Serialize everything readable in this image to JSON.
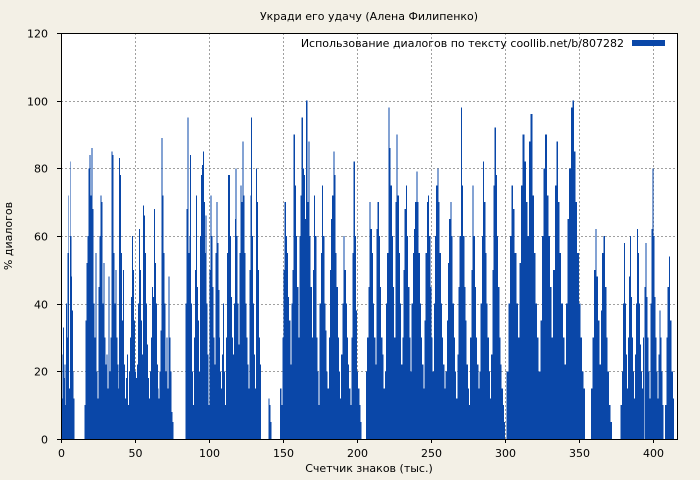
{
  "chart_data": {
    "type": "bar",
    "title": "Укради его удачу (Алена Филипенко)",
    "xlabel": "Счетчик знаков (тыс.)",
    "ylabel": "% диалогов",
    "xlim": [
      0,
      416
    ],
    "ylim": [
      0,
      120
    ],
    "xticks": [
      0,
      50,
      100,
      150,
      200,
      250,
      300,
      350,
      400
    ],
    "yticks": [
      0,
      20,
      40,
      60,
      80,
      100,
      120
    ],
    "grid": true,
    "legend_position": "top-right",
    "bar_color": "#0a47a8",
    "series": [
      {
        "name": "Использование диалогов по тексту coollib.net/b/807282",
        "segments": [
          {
            "x0": 0,
            "x1": 9,
            "values": [
              8,
              25,
              12,
              33,
              18,
              22,
              10,
              40,
              30,
              55,
              72,
              15,
              82,
              60,
              48,
              38,
              20,
              12
            ]
          },
          {
            "x0": 16,
            "x1": 76,
            "values": [
              10,
              35,
              52,
              60,
              80,
              84,
              72,
              86,
              68,
              40,
              30,
              55,
              20,
              12,
              45,
              60,
              72,
              70,
              40,
              52,
              30,
              22,
              25,
              15,
              48,
              20,
              30,
              85,
              84,
              55,
              40,
              50,
              30,
              22,
              15,
              83,
              78,
              55,
              35,
              50,
              22,
              12,
              18,
              25,
              10,
              20,
              30,
              42,
              60,
              50,
              35,
              20,
              18,
              22,
              40,
              62,
              50,
              35,
              25,
              69,
              66,
              55,
              40,
              28,
              18,
              12,
              20,
              30,
              45,
              42,
              68,
              52,
              40,
              22,
              15,
              12,
              20,
              32,
              89,
              72,
              55,
              40,
              20,
              30,
              15,
              48,
              30,
              20,
              8,
              5
            ]
          },
          {
            "x0": 84,
            "x1": 135,
            "values": [
              40,
              68,
              95,
              55,
              60,
              84,
              40,
              20,
              10,
              30,
              50,
              72,
              45,
              35,
              20,
              60,
              78,
              81,
              85,
              70,
              55,
              66,
              40,
              25,
              10,
              50,
              72,
              60,
              45,
              30,
              22,
              55,
              70,
              58,
              44,
              30,
              20,
              15,
              25,
              40,
              20,
              10,
              30,
              55,
              78,
              78,
              60,
              42,
              30,
              25,
              40,
              65,
              80,
              60,
              40,
              28,
              55,
              75,
              70,
              88,
              72,
              55,
              40,
              30,
              22,
              15,
              50,
              72,
              95,
              60,
              40,
              25,
              15,
              80,
              70,
              50,
              30,
              22
            ]
          },
          {
            "x0": 140,
            "x1": 142,
            "values": [
              12,
              10,
              5
            ]
          },
          {
            "x0": 148,
            "x1": 203,
            "values": [
              15,
              10,
              30,
              50,
              70,
              60,
              55,
              42,
              35,
              22,
              40,
              50,
              90,
              75,
              60,
              45,
              30,
              60,
              72,
              95,
              80,
              78,
              65,
              100,
              70,
              88,
              60,
              45,
              30,
              50,
              72,
              60,
              30,
              20,
              10,
              40,
              55,
              75,
              60,
              40,
              32,
              20,
              15,
              30,
              50,
              65,
              72,
              85,
              78,
              55,
              45,
              30,
              20,
              12,
              25,
              40,
              60,
              50,
              40,
              30,
              22,
              15,
              10,
              30,
              55,
              82,
              60,
              38,
              20,
              15,
              10,
              5
            ]
          },
          {
            "x0": 206,
            "x1": 300,
            "values": [
              20,
              30,
              45,
              70,
              62,
              55,
              40,
              30,
              22,
              62,
              70,
              60,
              45,
              30,
              25,
              15,
              20,
              40,
              55,
              98,
              86,
              75,
              60,
              45,
              30,
              70,
              90,
              72,
              55,
              40,
              22,
              30,
              50,
              68,
              75,
              60,
              45,
              30,
              20,
              40,
              55,
              62,
              70,
              79,
              70,
              55,
              40,
              30,
              22,
              15,
              35,
              55,
              70,
              72,
              60,
              45,
              30,
              20,
              40,
              60,
              75,
              80,
              70,
              55,
              40,
              30,
              22,
              15,
              20,
              35,
              52,
              65,
              70,
              60,
              40,
              30,
              20,
              12,
              25,
              45,
              60,
              98,
              75,
              60,
              45,
              35,
              22,
              15,
              10,
              30,
              50,
              75,
              60,
              45,
              30,
              22,
              15,
              20,
              40,
              60,
              82,
              70,
              55,
              40,
              30,
              20,
              12,
              25,
              50,
              75,
              92,
              78,
              60,
              45,
              30,
              22,
              15,
              10,
              5
            ]
          },
          {
            "x0": 301,
            "x1": 354,
            "values": [
              20,
              40,
              60,
              75,
              68,
              55,
              40,
              30,
              52,
              75,
              90,
              82,
              70,
              60,
              88,
              96,
              72,
              55,
              40,
              30,
              20,
              35,
              60,
              80,
              90,
              72,
              60,
              45,
              30,
              50,
              75,
              88,
              70,
              55,
              40,
              30,
              22,
              40,
              65,
              80,
              98,
              100,
              85,
              70,
              55,
              40,
              30,
              20,
              15
            ]
          },
          {
            "x0": 358,
            "x1": 372,
            "values": [
              15,
              30,
              50,
              62,
              48,
              35,
              22,
              38,
              55,
              60,
              45,
              30,
              20,
              10,
              5
            ]
          },
          {
            "x0": 378,
            "x1": 407,
            "values": [
              10,
              20,
              40,
              58,
              40,
              25,
              15,
              30,
              48,
              60,
              42,
              30,
              20,
              12,
              25,
              40,
              62,
              55,
              40,
              28,
              20,
              15,
              30,
              45,
              58,
              42,
              30,
              20,
              12,
              40,
              62,
              80,
              60,
              42,
              30,
              20,
              12,
              25,
              38,
              30,
              20,
              10
            ]
          },
          {
            "x0": 408,
            "x1": 414,
            "values": [
              10,
              30,
              45,
              54,
              35,
              20,
              12
            ]
          }
        ]
      }
    ]
  }
}
